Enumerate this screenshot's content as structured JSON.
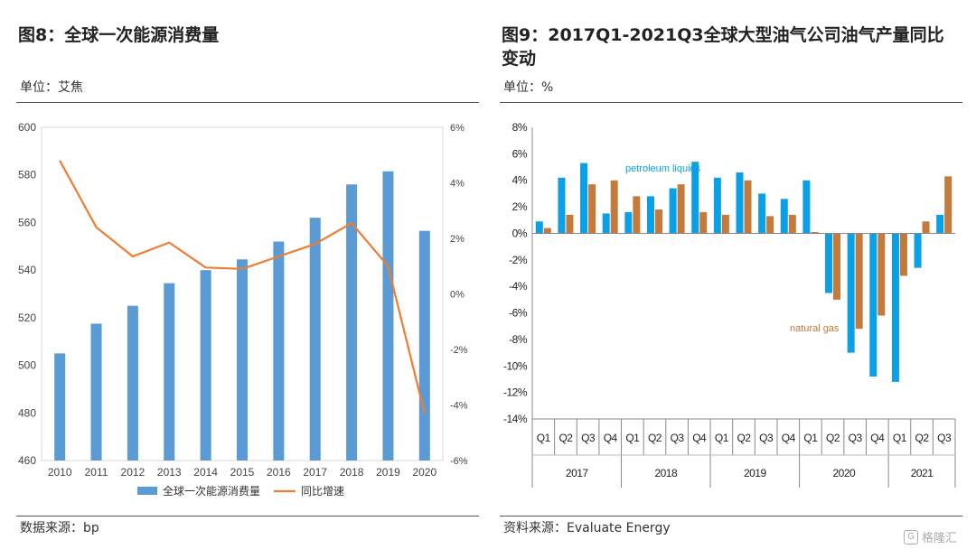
{
  "left": {
    "title": "图8：全球一次能源消费量",
    "unit": "单位：艾焦",
    "source": "数据来源：bp"
  },
  "right": {
    "title": "图9：2017Q1-2021Q3全球大型油气公司油气产量同比变动",
    "unit": "单位：%",
    "source": "资料来源：Evaluate Energy"
  },
  "watermark": "格隆汇",
  "colors": {
    "bar_blue": "#5b9bd5",
    "line_orange": "#ed7d31",
    "oil_blue": "#0aa0e8",
    "gas_brown": "#c47a3a"
  },
  "chart_data": [
    {
      "type": "bar",
      "categories": [
        "2010",
        "2011",
        "2012",
        "2013",
        "2014",
        "2015",
        "2016",
        "2017",
        "2018",
        "2019",
        "2020"
      ],
      "series": [
        {
          "name": "全球一次能源消费量",
          "type": "bar",
          "axis": "left",
          "values": [
            505,
            517.5,
            525,
            534.5,
            540,
            544.5,
            552,
            562,
            576,
            581.5,
            556.5
          ]
        },
        {
          "name": "同比增速",
          "type": "line",
          "axis": "right",
          "values": [
            4.8,
            2.4,
            1.35,
            1.85,
            0.95,
            0.9,
            1.35,
            1.8,
            2.55,
            1.0,
            -4.3
          ]
        }
      ],
      "ylim": [
        460,
        600
      ],
      "yticks": [
        "460",
        "480",
        "500",
        "520",
        "540",
        "560",
        "580",
        "600"
      ],
      "y2lim": [
        -6,
        6
      ],
      "y2ticks": [
        "-6%",
        "-4%",
        "-2%",
        "0%",
        "2%",
        "4%",
        "6%"
      ],
      "legend": "bottom"
    },
    {
      "type": "bar",
      "years": [
        "2017",
        "2018",
        "2019",
        "2020",
        "2021"
      ],
      "categories": [
        "Q1",
        "Q2",
        "Q3",
        "Q4",
        "Q1",
        "Q2",
        "Q3",
        "Q4",
        "Q1",
        "Q2",
        "Q3",
        "Q4",
        "Q1",
        "Q2",
        "Q3",
        "Q4",
        "Q1",
        "Q2",
        "Q3"
      ],
      "series": [
        {
          "name": "petroleum liquids",
          "values": [
            0.9,
            4.2,
            5.3,
            1.5,
            1.6,
            2.8,
            3.4,
            5.4,
            4.2,
            4.6,
            3.0,
            2.6,
            4.0,
            -4.5,
            -9.0,
            -10.8,
            -11.2,
            -2.6,
            1.4
          ]
        },
        {
          "name": "natural gas",
          "values": [
            0.4,
            1.4,
            3.7,
            4.0,
            2.8,
            1.8,
            3.7,
            1.6,
            1.4,
            4.0,
            1.3,
            1.4,
            0.1,
            -5.0,
            -7.2,
            -6.2,
            -3.2,
            0.9,
            4.3
          ]
        }
      ],
      "ylim": [
        -14,
        8
      ],
      "yticks": [
        "-14%",
        "-12%",
        "-10%",
        "-8%",
        "-6%",
        "-4%",
        "-2%",
        "0%",
        "2%",
        "4%",
        "6%",
        "8%"
      ]
    }
  ]
}
